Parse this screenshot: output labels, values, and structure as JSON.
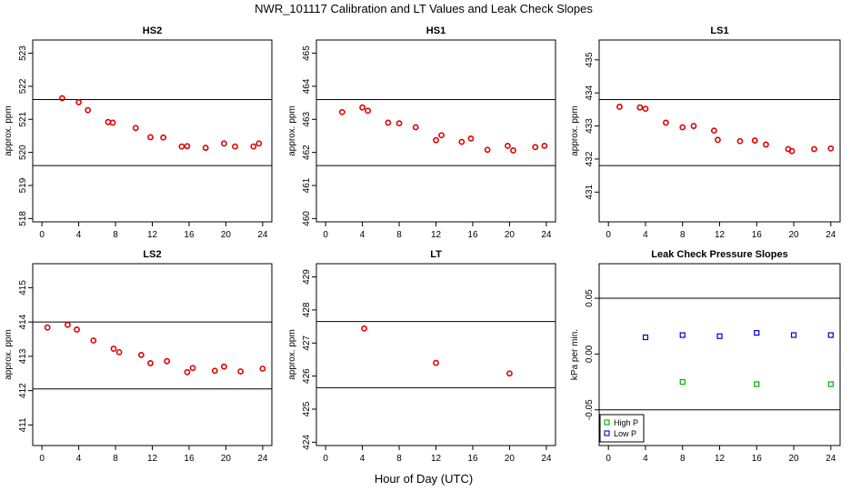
{
  "figure": {
    "title": "NWR_101117  Calibration and LT Values and Leak Check Slopes",
    "xlabel": "Hour of Day (UTC)"
  },
  "chart_data": [
    {
      "id": "hs2",
      "type": "scatter",
      "title": "HS2",
      "ylabel": "approx. ppm",
      "xlim": [
        -1,
        25
      ],
      "ylim": [
        517.9,
        523.4
      ],
      "xticks": [
        0,
        4,
        8,
        12,
        16,
        20,
        24
      ],
      "yticks": [
        518,
        519,
        520,
        521,
        522,
        523
      ],
      "hlines": [
        521.6,
        519.6
      ],
      "series": [
        {
          "name": "values",
          "color": "#e00000",
          "x": [
            2.2,
            4.0,
            5.0,
            7.2,
            7.7,
            10.2,
            11.8,
            13.2,
            15.2,
            15.8,
            17.8,
            19.8,
            21.0,
            23.0,
            23.6
          ],
          "y": [
            521.64,
            521.52,
            521.28,
            520.92,
            520.9,
            520.74,
            520.46,
            520.45,
            520.18,
            520.19,
            520.14,
            520.27,
            520.18,
            520.18,
            520.27
          ]
        }
      ]
    },
    {
      "id": "hs1",
      "type": "scatter",
      "title": "HS1",
      "ylabel": "approx. ppm",
      "xlim": [
        -1,
        25
      ],
      "ylim": [
        459.9,
        465.4
      ],
      "xticks": [
        0,
        4,
        8,
        12,
        16,
        20,
        24
      ],
      "yticks": [
        460,
        461,
        462,
        463,
        464,
        465
      ],
      "hlines": [
        463.6,
        461.6
      ],
      "series": [
        {
          "name": "values",
          "color": "#e00000",
          "x": [
            1.8,
            4.0,
            4.6,
            6.8,
            8.0,
            9.8,
            12.0,
            12.6,
            14.8,
            15.8,
            17.6,
            19.8,
            20.4,
            22.8,
            23.8
          ],
          "y": [
            463.22,
            463.36,
            463.26,
            462.9,
            462.88,
            462.76,
            462.37,
            462.52,
            462.32,
            462.42,
            462.08,
            462.2,
            462.06,
            462.16,
            462.2
          ]
        }
      ]
    },
    {
      "id": "ls1",
      "type": "scatter",
      "title": "LS1",
      "ylabel": "approx. ppm",
      "xlim": [
        -1,
        25
      ],
      "ylim": [
        430.1,
        435.6
      ],
      "xticks": [
        0,
        4,
        8,
        12,
        16,
        20,
        24
      ],
      "yticks": [
        431,
        432,
        433,
        434,
        435
      ],
      "hlines": [
        433.8,
        431.8
      ],
      "series": [
        {
          "name": "values",
          "color": "#e00000",
          "x": [
            1.2,
            3.4,
            4.0,
            6.2,
            8.0,
            9.2,
            11.4,
            11.8,
            14.2,
            15.8,
            17.0,
            19.4,
            19.8,
            22.2,
            24.0
          ],
          "y": [
            433.58,
            433.56,
            433.52,
            433.1,
            432.96,
            433.0,
            432.86,
            432.58,
            432.54,
            432.56,
            432.44,
            432.3,
            432.24,
            432.3,
            432.32
          ]
        }
      ]
    },
    {
      "id": "ls2",
      "type": "scatter",
      "title": "LS2",
      "ylabel": "approx. ppm",
      "xlim": [
        -1,
        25
      ],
      "ylim": [
        410.4,
        415.7
      ],
      "xticks": [
        0,
        4,
        8,
        12,
        16,
        20,
        24
      ],
      "yticks": [
        411,
        412,
        413,
        414,
        415
      ],
      "hlines": [
        414.0,
        412.05
      ],
      "series": [
        {
          "name": "values",
          "color": "#e00000",
          "x": [
            0.6,
            2.8,
            3.8,
            5.6,
            7.8,
            8.4,
            10.8,
            11.8,
            13.6,
            15.8,
            16.4,
            18.8,
            19.8,
            21.6,
            24.0
          ],
          "y": [
            413.84,
            413.92,
            413.78,
            413.46,
            413.22,
            413.12,
            413.04,
            412.8,
            412.86,
            412.54,
            412.66,
            412.58,
            412.7,
            412.56,
            412.64
          ]
        }
      ]
    },
    {
      "id": "lt",
      "type": "scatter",
      "title": "LT",
      "ylabel": "approx. ppm",
      "xlim": [
        -1,
        25
      ],
      "ylim": [
        423.9,
        429.4
      ],
      "xticks": [
        0,
        4,
        8,
        12,
        16,
        20,
        24
      ],
      "yticks": [
        424,
        425,
        426,
        427,
        428,
        429
      ],
      "hlines": [
        427.65,
        425.65
      ],
      "series": [
        {
          "name": "values",
          "color": "#e00000",
          "x": [
            4.2,
            12.0,
            20.0
          ],
          "y": [
            427.44,
            426.4,
            426.08
          ]
        }
      ]
    },
    {
      "id": "leak",
      "type": "scatter",
      "title": "Leak Check Pressure Slopes",
      "ylabel": "kPa per min.",
      "xlim": [
        -1,
        25
      ],
      "ylim": [
        -0.082,
        0.081
      ],
      "xticks": [
        0,
        4,
        8,
        12,
        16,
        20,
        24
      ],
      "yticks": [
        -0.05,
        0.0,
        0.05
      ],
      "ytick_labels": [
        "-0.05",
        "0.00",
        "0.05"
      ],
      "hlines": [
        0.05,
        -0.05
      ],
      "legend": {
        "position": "bottom-left",
        "entries": [
          "High P",
          "Low P"
        ]
      },
      "series": [
        {
          "name": "High P",
          "color": "#00b000",
          "x": [
            8,
            16,
            24
          ],
          "y": [
            -0.025,
            -0.027,
            -0.027
          ]
        },
        {
          "name": "Low P",
          "color": "#0000cc",
          "x": [
            4,
            8,
            12,
            16,
            20,
            24
          ],
          "y": [
            0.015,
            0.017,
            0.016,
            0.019,
            0.017,
            0.017
          ]
        }
      ]
    }
  ]
}
